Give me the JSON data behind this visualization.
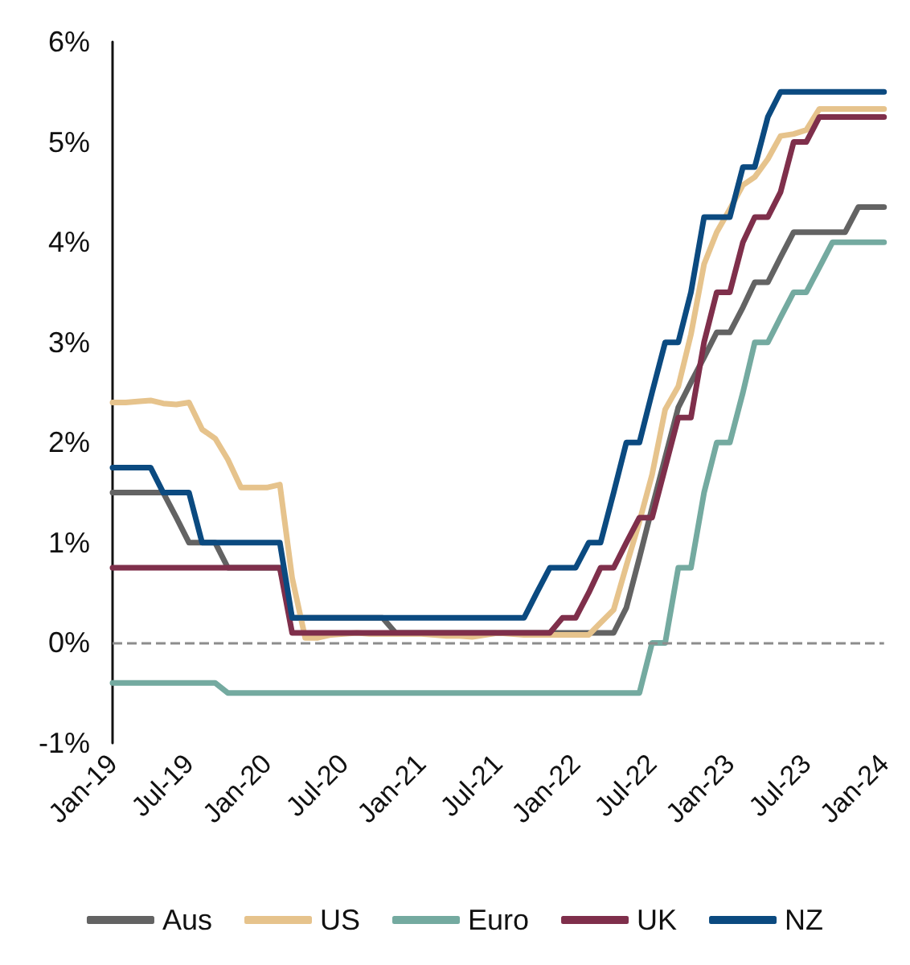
{
  "chart_data": {
    "type": "line",
    "x": [
      "2019-01",
      "2019-02",
      "2019-03",
      "2019-04",
      "2019-05",
      "2019-06",
      "2019-07",
      "2019-08",
      "2019-09",
      "2019-10",
      "2019-11",
      "2019-12",
      "2020-01",
      "2020-02",
      "2020-03",
      "2020-04",
      "2020-05",
      "2020-06",
      "2020-07",
      "2020-08",
      "2020-09",
      "2020-10",
      "2020-11",
      "2020-12",
      "2021-01",
      "2021-02",
      "2021-03",
      "2021-04",
      "2021-05",
      "2021-06",
      "2021-07",
      "2021-08",
      "2021-09",
      "2021-10",
      "2021-11",
      "2021-12",
      "2022-01",
      "2022-02",
      "2022-03",
      "2022-04",
      "2022-05",
      "2022-06",
      "2022-07",
      "2022-08",
      "2022-09",
      "2022-10",
      "2022-11",
      "2022-12",
      "2023-01",
      "2023-02",
      "2023-03",
      "2023-04",
      "2023-05",
      "2023-06",
      "2023-07",
      "2023-08",
      "2023-09",
      "2023-10",
      "2023-11",
      "2023-12",
      "2024-01"
    ],
    "series": [
      {
        "name": "Aus",
        "color": "#636363",
        "values": [
          1.5,
          1.5,
          1.5,
          1.5,
          1.5,
          1.25,
          1.0,
          1.0,
          1.0,
          0.75,
          0.75,
          0.75,
          0.75,
          0.75,
          0.25,
          0.25,
          0.25,
          0.25,
          0.25,
          0.25,
          0.25,
          0.25,
          0.1,
          0.1,
          0.1,
          0.1,
          0.1,
          0.1,
          0.1,
          0.1,
          0.1,
          0.1,
          0.1,
          0.1,
          0.1,
          0.1,
          0.1,
          0.1,
          0.1,
          0.1,
          0.35,
          0.85,
          1.35,
          1.85,
          2.35,
          2.6,
          2.85,
          3.1,
          3.1,
          3.35,
          3.6,
          3.6,
          3.85,
          4.1,
          4.1,
          4.1,
          4.1,
          4.1,
          4.35,
          4.35,
          4.35
        ]
      },
      {
        "name": "US",
        "color": "#e6c38c",
        "values": [
          2.4,
          2.4,
          2.41,
          2.42,
          2.39,
          2.38,
          2.4,
          2.13,
          2.04,
          1.83,
          1.55,
          1.55,
          1.55,
          1.58,
          0.65,
          0.05,
          0.05,
          0.08,
          0.09,
          0.1,
          0.09,
          0.09,
          0.09,
          0.09,
          0.09,
          0.08,
          0.07,
          0.07,
          0.06,
          0.08,
          0.1,
          0.09,
          0.08,
          0.08,
          0.08,
          0.08,
          0.08,
          0.08,
          0.2,
          0.33,
          0.77,
          1.21,
          1.68,
          2.33,
          2.56,
          3.08,
          3.78,
          4.1,
          4.33,
          4.57,
          4.65,
          4.83,
          5.06,
          5.08,
          5.12,
          5.33,
          5.33,
          5.33,
          5.33,
          5.33,
          5.33
        ]
      },
      {
        "name": "Euro",
        "color": "#74aaa0",
        "values": [
          -0.4,
          -0.4,
          -0.4,
          -0.4,
          -0.4,
          -0.4,
          -0.4,
          -0.4,
          -0.4,
          -0.5,
          -0.5,
          -0.5,
          -0.5,
          -0.5,
          -0.5,
          -0.5,
          -0.5,
          -0.5,
          -0.5,
          -0.5,
          -0.5,
          -0.5,
          -0.5,
          -0.5,
          -0.5,
          -0.5,
          -0.5,
          -0.5,
          -0.5,
          -0.5,
          -0.5,
          -0.5,
          -0.5,
          -0.5,
          -0.5,
          -0.5,
          -0.5,
          -0.5,
          -0.5,
          -0.5,
          -0.5,
          -0.5,
          0,
          0,
          0.75,
          0.75,
          1.5,
          2.0,
          2.0,
          2.5,
          3.0,
          3.0,
          3.25,
          3.5,
          3.5,
          3.75,
          4.0,
          4.0,
          4.0,
          4.0,
          4.0
        ]
      },
      {
        "name": "UK",
        "color": "#7f2f4b",
        "values": [
          0.75,
          0.75,
          0.75,
          0.75,
          0.75,
          0.75,
          0.75,
          0.75,
          0.75,
          0.75,
          0.75,
          0.75,
          0.75,
          0.75,
          0.1,
          0.1,
          0.1,
          0.1,
          0.1,
          0.1,
          0.1,
          0.1,
          0.1,
          0.1,
          0.1,
          0.1,
          0.1,
          0.1,
          0.1,
          0.1,
          0.1,
          0.1,
          0.1,
          0.1,
          0.1,
          0.25,
          0.25,
          0.5,
          0.75,
          0.75,
          1.0,
          1.25,
          1.25,
          1.75,
          2.25,
          2.25,
          3.0,
          3.5,
          3.5,
          4.0,
          4.25,
          4.25,
          4.5,
          5.0,
          5.0,
          5.25,
          5.25,
          5.25,
          5.25,
          5.25,
          5.25
        ]
      },
      {
        "name": "NZ",
        "color": "#0b4a80",
        "values": [
          1.75,
          1.75,
          1.75,
          1.75,
          1.5,
          1.5,
          1.5,
          1.0,
          1.0,
          1.0,
          1.0,
          1.0,
          1.0,
          1.0,
          0.25,
          0.25,
          0.25,
          0.25,
          0.25,
          0.25,
          0.25,
          0.25,
          0.25,
          0.25,
          0.25,
          0.25,
          0.25,
          0.25,
          0.25,
          0.25,
          0.25,
          0.25,
          0.25,
          0.5,
          0.75,
          0.75,
          0.75,
          1.0,
          1.0,
          1.5,
          2.0,
          2.0,
          2.5,
          3.0,
          3.0,
          3.5,
          4.25,
          4.25,
          4.25,
          4.75,
          4.75,
          5.25,
          5.5,
          5.5,
          5.5,
          5.5,
          5.5,
          5.5,
          5.5,
          5.5,
          5.5
        ]
      }
    ],
    "xlim": [
      "2019-01",
      "2024-01"
    ],
    "xticks": [
      {
        "value": "2019-01",
        "label": "Jan-19"
      },
      {
        "value": "2019-07",
        "label": "Jul-19"
      },
      {
        "value": "2020-01",
        "label": "Jan-20"
      },
      {
        "value": "2020-07",
        "label": "Jul-20"
      },
      {
        "value": "2021-01",
        "label": "Jan-21"
      },
      {
        "value": "2021-07",
        "label": "Jul-21"
      },
      {
        "value": "2022-01",
        "label": "Jan-22"
      },
      {
        "value": "2022-07",
        "label": "Jul-22"
      },
      {
        "value": "2023-01",
        "label": "Jan-23"
      },
      {
        "value": "2023-07",
        "label": "Jul-23"
      },
      {
        "value": "2024-01",
        "label": "Jan-24"
      }
    ],
    "ylim": [
      -1,
      6
    ],
    "yticks": [
      {
        "value": -1,
        "label": "-1%"
      },
      {
        "value": 0,
        "label": "0%"
      },
      {
        "value": 1,
        "label": "1%"
      },
      {
        "value": 2,
        "label": "2%"
      },
      {
        "value": 3,
        "label": "3%"
      },
      {
        "value": 4,
        "label": "4%"
      },
      {
        "value": 5,
        "label": "5%"
      },
      {
        "value": 6,
        "label": "6%"
      }
    ],
    "ref_lines": [
      {
        "axis": "y",
        "value": 0,
        "label": null,
        "color": "#8c8c8c",
        "line_style": "dashed"
      }
    ],
    "grid": false,
    "legend": "bottom",
    "marker": "none"
  }
}
